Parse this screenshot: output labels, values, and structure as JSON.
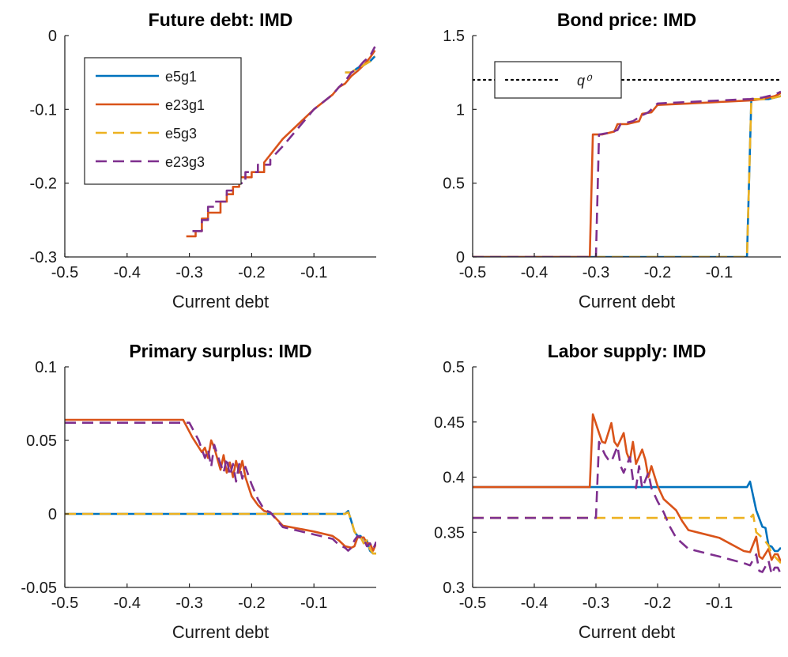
{
  "chart_data": [
    {
      "type": "line",
      "title": "Future debt: IMD",
      "xlabel": "Current debt",
      "ylabel": "",
      "xlim": [
        -0.5,
        0
      ],
      "ylim": [
        -0.3,
        0
      ],
      "xticks": [
        -0.5,
        -0.4,
        -0.3,
        -0.2,
        -0.1
      ],
      "xtick_labels": [
        "-0.5",
        "-0.4",
        "-0.3",
        "-0.2",
        "-0.1"
      ],
      "yticks": [
        -0.3,
        -0.2,
        -0.1,
        0
      ],
      "ytick_labels": [
        "-0.3",
        "-0.2",
        "-0.1",
        "0"
      ],
      "legend": {
        "position": "top-left",
        "entries": [
          {
            "label": "e5g1",
            "color": "#0072BD",
            "style": "solid"
          },
          {
            "label": "e23g1",
            "color": "#D95319",
            "style": "solid"
          },
          {
            "label": "e5g3",
            "color": "#EDB120",
            "style": "dashed"
          },
          {
            "label": "e23g3",
            "color": "#7E2F8E",
            "style": "dashed"
          }
        ]
      },
      "series": [
        {
          "name": "e5g1",
          "color": "#0072BD",
          "style": "solid",
          "x": [
            -0.05,
            -0.04,
            -0.03,
            -0.02,
            -0.01,
            -0.002
          ],
          "y": [
            -0.05,
            -0.05,
            -0.044,
            -0.04,
            -0.035,
            -0.028
          ]
        },
        {
          "name": "e23g1",
          "color": "#D95319",
          "style": "solid",
          "x": [
            -0.305,
            -0.29,
            -0.29,
            -0.28,
            -0.28,
            -0.27,
            -0.27,
            -0.25,
            -0.25,
            -0.24,
            -0.24,
            -0.23,
            -0.23,
            -0.22,
            -0.22,
            -0.2,
            -0.2,
            -0.18,
            -0.18,
            -0.15,
            -0.1,
            -0.07,
            -0.06,
            -0.05,
            -0.04,
            -0.03,
            -0.02,
            -0.01,
            -0.002
          ],
          "y": [
            -0.272,
            -0.272,
            -0.265,
            -0.265,
            -0.248,
            -0.248,
            -0.24,
            -0.24,
            -0.225,
            -0.225,
            -0.215,
            -0.215,
            -0.205,
            -0.205,
            -0.192,
            -0.192,
            -0.185,
            -0.185,
            -0.172,
            -0.14,
            -0.1,
            -0.08,
            -0.07,
            -0.065,
            -0.055,
            -0.048,
            -0.04,
            -0.03,
            -0.02
          ]
        },
        {
          "name": "e5g3",
          "color": "#EDB120",
          "style": "dashed",
          "x": [
            -0.05,
            -0.04,
            -0.03,
            -0.02,
            -0.01,
            -0.002
          ],
          "y": [
            -0.05,
            -0.05,
            -0.044,
            -0.04,
            -0.035,
            -0.028
          ]
        },
        {
          "name": "e23g3",
          "color": "#7E2F8E",
          "style": "dashed",
          "x": [
            -0.295,
            -0.28,
            -0.28,
            -0.27,
            -0.27,
            -0.26,
            -0.26,
            -0.24,
            -0.24,
            -0.23,
            -0.23,
            -0.21,
            -0.21,
            -0.19,
            -0.19,
            -0.17,
            -0.17,
            -0.15,
            -0.1,
            -0.07,
            -0.06,
            -0.05,
            -0.04,
            -0.03,
            -0.02,
            -0.01,
            -0.002
          ],
          "y": [
            -0.265,
            -0.265,
            -0.25,
            -0.25,
            -0.232,
            -0.232,
            -0.225,
            -0.225,
            -0.21,
            -0.21,
            -0.2,
            -0.2,
            -0.185,
            -0.185,
            -0.175,
            -0.175,
            -0.168,
            -0.15,
            -0.1,
            -0.08,
            -0.07,
            -0.062,
            -0.05,
            -0.045,
            -0.035,
            -0.028,
            -0.015
          ]
        }
      ]
    },
    {
      "type": "line",
      "title": "Bond price: IMD",
      "xlabel": "Current debt",
      "ylabel": "",
      "xlim": [
        -0.5,
        0
      ],
      "ylim": [
        0,
        1.5
      ],
      "xticks": [
        -0.5,
        -0.4,
        -0.3,
        -0.2,
        -0.1
      ],
      "xtick_labels": [
        "-0.5",
        "-0.4",
        "-0.3",
        "-0.2",
        "-0.1"
      ],
      "yticks": [
        0,
        0.5,
        1,
        1.5
      ],
      "ytick_labels": [
        "0",
        "0.5",
        "1",
        "1.5"
      ],
      "reference_line": {
        "y": 1.2,
        "label": "q⁰",
        "color": "#000000",
        "style": "dotted"
      },
      "legend": {
        "position": "top-left",
        "entries": [
          {
            "label": "q⁰",
            "color": "#000000",
            "style": "dotted"
          }
        ]
      },
      "series": [
        {
          "name": "e5g1",
          "color": "#0072BD",
          "style": "solid",
          "x": [
            -0.5,
            -0.055,
            -0.048,
            -0.02,
            -0.01,
            0
          ],
          "y": [
            0,
            0,
            1.07,
            1.07,
            1.08,
            1.09
          ]
        },
        {
          "name": "e23g1",
          "color": "#D95319",
          "style": "solid",
          "x": [
            -0.5,
            -0.31,
            -0.305,
            -0.29,
            -0.27,
            -0.265,
            -0.25,
            -0.23,
            -0.225,
            -0.21,
            -0.2,
            -0.15,
            -0.1,
            -0.05,
            -0.03,
            -0.02,
            -0.01,
            0
          ],
          "y": [
            0,
            0,
            0.83,
            0.83,
            0.85,
            0.9,
            0.9,
            0.92,
            0.97,
            0.98,
            1.03,
            1.04,
            1.05,
            1.06,
            1.07,
            1.08,
            1.09,
            1.11
          ]
        },
        {
          "name": "e5g3",
          "color": "#EDB120",
          "style": "dashed",
          "x": [
            -0.5,
            -0.055,
            -0.048,
            -0.02,
            -0.01,
            0
          ],
          "y": [
            0,
            0,
            1.07,
            1.07,
            1.08,
            1.09
          ]
        },
        {
          "name": "e23g3",
          "color": "#7E2F8E",
          "style": "dashed",
          "x": [
            -0.5,
            -0.3,
            -0.295,
            -0.28,
            -0.265,
            -0.26,
            -0.24,
            -0.225,
            -0.215,
            -0.2,
            -0.15,
            -0.1,
            -0.05,
            -0.03,
            -0.02,
            -0.01,
            0
          ],
          "y": [
            0,
            0,
            0.83,
            0.84,
            0.86,
            0.9,
            0.92,
            0.96,
            0.98,
            1.04,
            1.05,
            1.06,
            1.07,
            1.08,
            1.09,
            1.1,
            1.12
          ]
        }
      ]
    },
    {
      "type": "line",
      "title": "Primary surplus: IMD",
      "xlabel": "Current debt",
      "ylabel": "",
      "xlim": [
        -0.5,
        0
      ],
      "ylim": [
        -0.05,
        0.1
      ],
      "xticks": [
        -0.5,
        -0.4,
        -0.3,
        -0.2,
        -0.1
      ],
      "xtick_labels": [
        "-0.5",
        "-0.4",
        "-0.3",
        "-0.2",
        "-0.1"
      ],
      "yticks": [
        -0.05,
        0,
        0.05,
        0.1
      ],
      "ytick_labels": [
        "-0.05",
        "0",
        "0.05",
        "0.1"
      ],
      "series": [
        {
          "name": "e5g1",
          "color": "#0072BD",
          "style": "solid",
          "x": [
            -0.5,
            -0.05,
            -0.045,
            -0.04,
            -0.035,
            -0.03,
            -0.025,
            -0.02,
            -0.015,
            -0.01,
            -0.005,
            0
          ],
          "y": [
            0,
            0,
            0.002,
            -0.005,
            -0.012,
            -0.015,
            -0.015,
            -0.02,
            -0.018,
            -0.025,
            -0.027,
            -0.027
          ]
        },
        {
          "name": "e23g1",
          "color": "#D95319",
          "style": "solid",
          "x": [
            -0.5,
            -0.31,
            -0.295,
            -0.28,
            -0.275,
            -0.27,
            -0.265,
            -0.26,
            -0.25,
            -0.245,
            -0.24,
            -0.235,
            -0.23,
            -0.225,
            -0.22,
            -0.215,
            -0.21,
            -0.2,
            -0.19,
            -0.18,
            -0.17,
            -0.15,
            -0.1,
            -0.07,
            -0.06,
            -0.05,
            -0.04,
            -0.035,
            -0.03,
            -0.02,
            -0.015,
            -0.01,
            -0.005,
            0
          ],
          "y": [
            0.064,
            0.064,
            0.052,
            0.042,
            0.045,
            0.038,
            0.05,
            0.045,
            0.03,
            0.04,
            0.028,
            0.035,
            0.025,
            0.036,
            0.028,
            0.036,
            0.025,
            0.012,
            0.006,
            0.002,
            0.001,
            -0.008,
            -0.012,
            -0.015,
            -0.018,
            -0.022,
            -0.023,
            -0.022,
            -0.016,
            -0.016,
            -0.02,
            -0.02,
            -0.025,
            -0.02
          ]
        },
        {
          "name": "e5g3",
          "color": "#EDB120",
          "style": "dashed",
          "x": [
            -0.5,
            -0.05,
            -0.045,
            -0.04,
            -0.035,
            -0.03,
            -0.025,
            -0.02,
            -0.015,
            -0.01,
            -0.005,
            0
          ],
          "y": [
            0,
            0,
            0.001,
            -0.004,
            -0.012,
            -0.015,
            -0.016,
            -0.02,
            -0.018,
            -0.024,
            -0.027,
            -0.027
          ]
        },
        {
          "name": "e23g3",
          "color": "#7E2F8E",
          "style": "dashed",
          "x": [
            -0.5,
            -0.3,
            -0.285,
            -0.275,
            -0.27,
            -0.265,
            -0.26,
            -0.255,
            -0.245,
            -0.24,
            -0.235,
            -0.23,
            -0.225,
            -0.22,
            -0.215,
            -0.21,
            -0.2,
            -0.19,
            -0.18,
            -0.17,
            -0.15,
            -0.1,
            -0.07,
            -0.06,
            -0.05,
            -0.045,
            -0.04,
            -0.035,
            -0.03,
            -0.02,
            -0.015,
            -0.01,
            -0.005,
            0
          ],
          "y": [
            0.062,
            0.062,
            0.05,
            0.038,
            0.044,
            0.032,
            0.047,
            0.04,
            0.028,
            0.038,
            0.026,
            0.034,
            0.022,
            0.034,
            0.024,
            0.032,
            0.02,
            0.01,
            0.003,
            0.001,
            -0.009,
            -0.014,
            -0.017,
            -0.021,
            -0.023,
            -0.025,
            -0.023,
            -0.018,
            -0.015,
            -0.017,
            -0.022,
            -0.02,
            -0.024,
            -0.019
          ]
        }
      ]
    },
    {
      "type": "line",
      "title": "Labor supply: IMD",
      "xlabel": "Current debt",
      "ylabel": "",
      "xlim": [
        -0.5,
        0
      ],
      "ylim": [
        0.3,
        0.5
      ],
      "xticks": [
        -0.5,
        -0.4,
        -0.3,
        -0.2,
        -0.1
      ],
      "xtick_labels": [
        "-0.5",
        "-0.4",
        "-0.3",
        "-0.2",
        "-0.1"
      ],
      "yticks": [
        0.3,
        0.35,
        0.4,
        0.45,
        0.5
      ],
      "ytick_labels": [
        "0.3",
        "0.35",
        "0.4",
        "0.45",
        "0.5"
      ],
      "series": [
        {
          "name": "e5g1",
          "color": "#0072BD",
          "style": "solid",
          "x": [
            -0.5,
            -0.055,
            -0.05,
            -0.04,
            -0.03,
            -0.025,
            -0.02,
            -0.015,
            -0.01,
            -0.005,
            0
          ],
          "y": [
            0.391,
            0.391,
            0.396,
            0.37,
            0.355,
            0.354,
            0.338,
            0.337,
            0.333,
            0.333,
            0.336
          ]
        },
        {
          "name": "e23g1",
          "color": "#D95319",
          "style": "solid",
          "x": [
            -0.5,
            -0.31,
            -0.305,
            -0.295,
            -0.29,
            -0.285,
            -0.275,
            -0.27,
            -0.265,
            -0.255,
            -0.25,
            -0.245,
            -0.24,
            -0.235,
            -0.225,
            -0.22,
            -0.215,
            -0.21,
            -0.2,
            -0.19,
            -0.17,
            -0.16,
            -0.15,
            -0.1,
            -0.06,
            -0.05,
            -0.04,
            -0.035,
            -0.03,
            -0.02,
            -0.015,
            -0.01,
            -0.005,
            0
          ],
          "y": [
            0.391,
            0.391,
            0.457,
            0.44,
            0.432,
            0.431,
            0.449,
            0.432,
            0.428,
            0.44,
            0.422,
            0.415,
            0.432,
            0.412,
            0.425,
            0.416,
            0.4,
            0.41,
            0.392,
            0.38,
            0.37,
            0.36,
            0.352,
            0.345,
            0.333,
            0.332,
            0.346,
            0.328,
            0.326,
            0.335,
            0.325,
            0.33,
            0.33,
            0.323
          ]
        },
        {
          "name": "e5g3",
          "color": "#EDB120",
          "style": "dashed",
          "x": [
            -0.5,
            -0.3,
            -0.295,
            -0.05,
            -0.045,
            -0.04,
            -0.03,
            -0.02,
            -0.015,
            -0.01,
            -0.005,
            0
          ],
          "y": [
            0.363,
            0.363,
            0.363,
            0.363,
            0.366,
            0.35,
            0.345,
            0.338,
            0.33,
            0.328,
            0.325,
            0.322
          ]
        },
        {
          "name": "e23g3",
          "color": "#7E2F8E",
          "style": "dashed",
          "x": [
            -0.5,
            -0.3,
            -0.295,
            -0.285,
            -0.28,
            -0.275,
            -0.265,
            -0.26,
            -0.255,
            -0.245,
            -0.24,
            -0.235,
            -0.23,
            -0.225,
            -0.215,
            -0.21,
            -0.2,
            -0.19,
            -0.18,
            -0.17,
            -0.15,
            -0.1,
            -0.06,
            -0.05,
            -0.04,
            -0.035,
            -0.03,
            -0.02,
            -0.015,
            -0.01,
            -0.005,
            0
          ],
          "y": [
            0.363,
            0.363,
            0.432,
            0.42,
            0.416,
            0.414,
            0.428,
            0.41,
            0.404,
            0.418,
            0.398,
            0.39,
            0.41,
            0.39,
            0.404,
            0.39,
            0.378,
            0.368,
            0.355,
            0.345,
            0.335,
            0.328,
            0.322,
            0.32,
            0.33,
            0.315,
            0.314,
            0.324,
            0.312,
            0.318,
            0.318,
            0.312
          ]
        }
      ]
    }
  ]
}
